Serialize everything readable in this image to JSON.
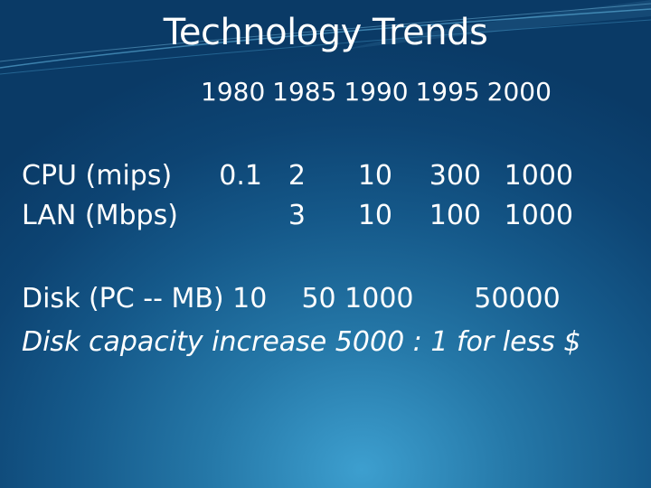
{
  "slide": {
    "title": "Technology Trends",
    "years_header": "1980 1985 1990 1995 2000",
    "rows": [
      {
        "label": "CPU (mips)",
        "values": [
          "0.1",
          "2",
          "10",
          "300",
          "1000"
        ]
      },
      {
        "label": "LAN (Mbps)",
        "values": [
          "",
          "3",
          "10",
          "100",
          "1000"
        ]
      }
    ],
    "disk_line": "Disk (PC -- MB) 10    50 1000       50000",
    "note": "Disk capacity increase 5000 : 1 for less $"
  },
  "colors": {
    "background_dark": "#0a3a66",
    "background_light": "#3d9fcf",
    "text": "#ffffff"
  }
}
